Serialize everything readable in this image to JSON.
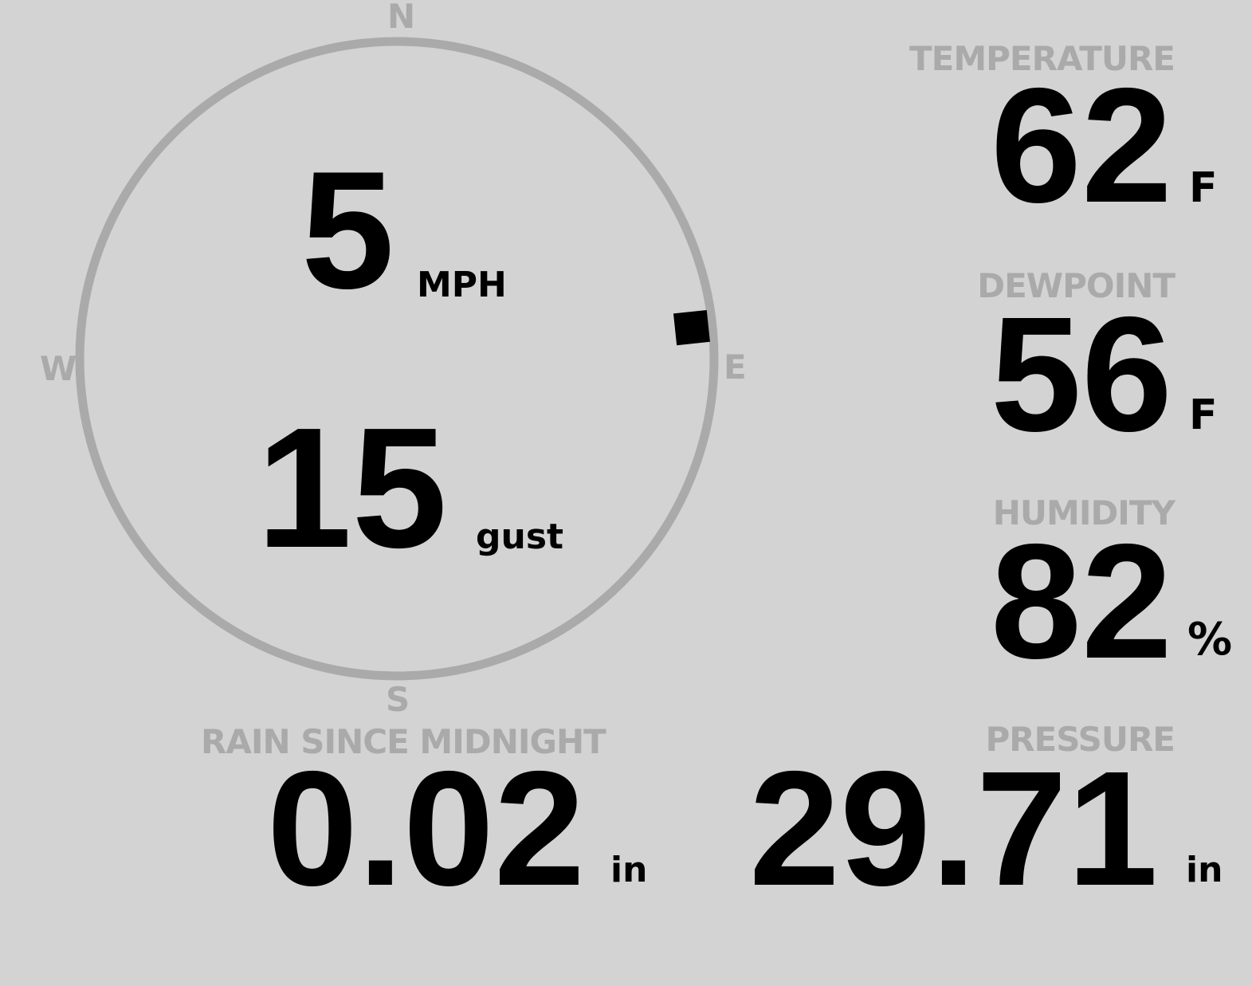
{
  "compass": {
    "north": "N",
    "south": "S",
    "east": "E",
    "west": "W",
    "direction_degrees": 84,
    "ring_color": "#aaaaaa",
    "marker_color": "#000000"
  },
  "wind": {
    "speed": "5",
    "speed_unit": "MPH",
    "gust": "15",
    "gust_unit": "gust"
  },
  "temperature": {
    "label": "TEMPERATURE",
    "value": "62",
    "unit": "F"
  },
  "dewpoint": {
    "label": "DEWPOINT",
    "value": "56",
    "unit": "F"
  },
  "humidity": {
    "label": "HUMIDITY",
    "value": "82",
    "unit": "%"
  },
  "rain": {
    "label": "RAIN SINCE MIDNIGHT",
    "value": "0.02",
    "unit": "in"
  },
  "pressure": {
    "label": "PRESSURE",
    "value": "29.71",
    "unit": "in"
  },
  "colors": {
    "background": "#d3d3d3",
    "label": "#aaaaaa",
    "value": "#000000"
  }
}
